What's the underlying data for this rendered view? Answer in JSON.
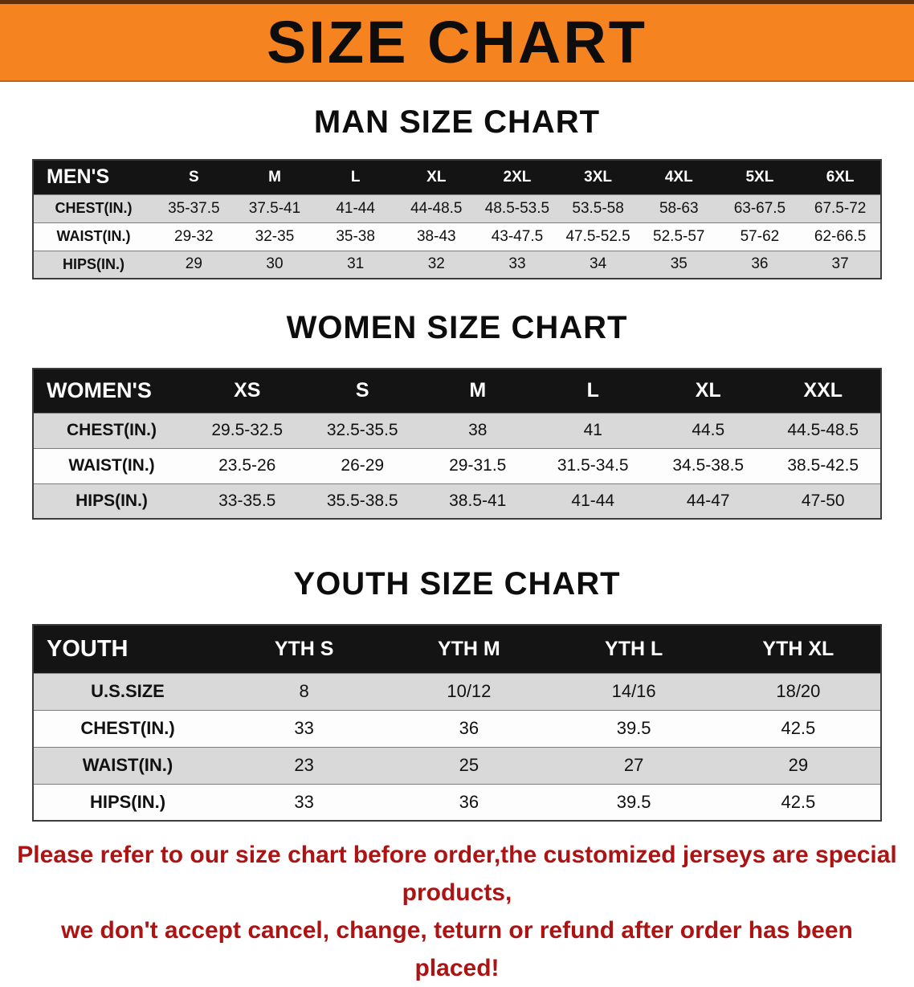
{
  "banner": {
    "title": "SIZE CHART"
  },
  "charts": [
    {
      "name": "mens",
      "heading": "MAN SIZE CHART",
      "corner": "MEN'S",
      "columns": [
        "S",
        "M",
        "L",
        "XL",
        "2XL",
        "3XL",
        "4XL",
        "5XL",
        "6XL"
      ],
      "rows": [
        {
          "label": "CHEST(IN.)",
          "values": [
            "35-37.5",
            "37.5-41",
            "41-44",
            "44-48.5",
            "48.5-53.5",
            "53.5-58",
            "58-63",
            "63-67.5",
            "67.5-72"
          ]
        },
        {
          "label": "WAIST(IN.)",
          "values": [
            "29-32",
            "32-35",
            "35-38",
            "38-43",
            "43-47.5",
            "47.5-52.5",
            "52.5-57",
            "57-62",
            "62-66.5"
          ]
        },
        {
          "label": "HIPS(IN.)",
          "values": [
            "29",
            "30",
            "31",
            "32",
            "33",
            "34",
            "35",
            "36",
            "37"
          ]
        }
      ]
    },
    {
      "name": "womens",
      "heading": "WOMEN SIZE CHART",
      "corner": "WOMEN'S",
      "columns": [
        "XS",
        "S",
        "M",
        "L",
        "XL",
        "XXL"
      ],
      "rows": [
        {
          "label": "CHEST(IN.)",
          "values": [
            "29.5-32.5",
            "32.5-35.5",
            "38",
            "41",
            "44.5",
            "44.5-48.5"
          ]
        },
        {
          "label": "WAIST(IN.)",
          "values": [
            "23.5-26",
            "26-29",
            "29-31.5",
            "31.5-34.5",
            "34.5-38.5",
            "38.5-42.5"
          ]
        },
        {
          "label": "HIPS(IN.)",
          "values": [
            "33-35.5",
            "35.5-38.5",
            "38.5-41",
            "41-44",
            "44-47",
            "47-50"
          ]
        }
      ]
    },
    {
      "name": "youth",
      "heading": "YOUTH SIZE CHART",
      "corner": "YOUTH",
      "columns": [
        "YTH S",
        "YTH M",
        "YTH L",
        "YTH XL"
      ],
      "rows": [
        {
          "label": "U.S.SIZE",
          "values": [
            "8",
            "10/12",
            "14/16",
            "18/20"
          ]
        },
        {
          "label": "CHEST(IN.)",
          "values": [
            "33",
            "36",
            "39.5",
            "42.5"
          ]
        },
        {
          "label": "WAIST(IN.)",
          "values": [
            "23",
            "25",
            "27",
            "29"
          ]
        },
        {
          "label": "HIPS(IN.)",
          "values": [
            "33",
            "36",
            "39.5",
            "42.5"
          ]
        }
      ]
    }
  ],
  "footer": {
    "line1": "Please refer to our size chart before order,the customized jerseys are special products,",
    "line2": "we don't accept cancel, change, teturn or refund after order has been placed!"
  },
  "colors": {
    "banner_orange": "#f5831f",
    "header_black": "#141414",
    "row_gray": "#d9d9d9",
    "footer_red": "#ad1313"
  }
}
